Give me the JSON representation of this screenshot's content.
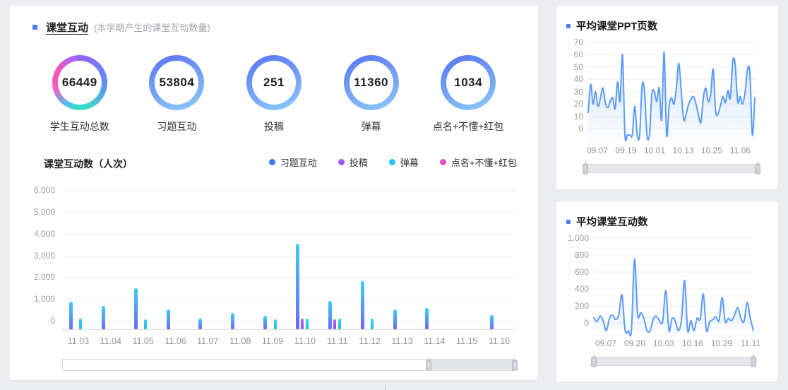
{
  "page": {
    "background": "#ebedf0",
    "accent": "#4e7df2"
  },
  "left_panel": {
    "title": "课堂互动",
    "subtitle": "(本学期产生的课堂互动数量)",
    "rings": [
      {
        "value": "66449",
        "label": "学生互动总数",
        "style": "multicolor"
      },
      {
        "value": "53804",
        "label": "习题互动",
        "style": "blue"
      },
      {
        "value": "251",
        "label": "投稿",
        "style": "blue"
      },
      {
        "value": "11360",
        "label": "弹幕",
        "style": "blue"
      },
      {
        "value": "1034",
        "label": "点名+不懂+红包",
        "style": "blue"
      }
    ]
  },
  "right_top_panel": {
    "title": "平均课堂PPT页数"
  },
  "right_bottom_panel": {
    "title": "平均课堂互动数"
  },
  "chart_data": [
    {
      "id": "classroom-interactions-bar",
      "type": "bar",
      "title": "课堂互动数（人次）",
      "categories": [
        "11.03",
        "11.04",
        "11.05",
        "11.06",
        "11.07",
        "11.08",
        "11.09",
        "11.10",
        "11.11",
        "11.12",
        "11.13",
        "11.14",
        "11.15",
        "11.16"
      ],
      "series": [
        {
          "name": "习题互动",
          "color": "#3d7bf8",
          "gradient": [
            "#3ecdf6",
            "#6a6cf2"
          ],
          "values": [
            850,
            650,
            1450,
            500,
            70,
            320,
            180,
            3500,
            870,
            1780,
            480,
            560,
            0,
            230
          ]
        },
        {
          "name": "投稿",
          "color": "#9b5cf6",
          "gradient": [
            "#a96cf8",
            "#8b52ee"
          ],
          "values": [
            0,
            0,
            0,
            0,
            0,
            0,
            0,
            60,
            30,
            0,
            0,
            0,
            0,
            0
          ]
        },
        {
          "name": "弹幕",
          "color": "#28c6f0",
          "gradient": [
            "#3fd4f6",
            "#22b8ec"
          ],
          "values": [
            60,
            0,
            40,
            0,
            0,
            0,
            30,
            70,
            50,
            60,
            0,
            0,
            0,
            0
          ]
        },
        {
          "name": "点名+不懂+红包",
          "color": "#e84fc8",
          "gradient": [
            "#f déb",
            "#e84fc8"
          ],
          "values": [
            30,
            40,
            40,
            0,
            0,
            20,
            30,
            40,
            40,
            40,
            30,
            20,
            0,
            30
          ]
        }
      ],
      "ylim": [
        0,
        6000
      ],
      "y_tick_labels": [
        "0",
        "1,000",
        "2,000",
        "3,000",
        "4,000",
        "5,000",
        "6,000"
      ],
      "grid": true,
      "legend_position": "top-right",
      "zoom_slider": {
        "start": 81,
        "end": 100
      }
    },
    {
      "id": "avg-ppt-pages-line",
      "type": "line",
      "title": "平均课堂PPT页数",
      "x_labels": [
        "09.07",
        "09.19",
        "10.01",
        "10.13",
        "10.25",
        "11.06"
      ],
      "ylim": [
        0,
        70
      ],
      "y_tick_labels": [
        "0",
        "10",
        "20",
        "30",
        "40",
        "50",
        "60",
        "70"
      ],
      "color": "#5b9bf8",
      "area": true,
      "grid": true,
      "values": [
        13,
        36,
        20,
        30,
        18,
        25,
        33,
        21,
        17,
        22,
        25,
        16,
        38,
        22,
        60,
        0,
        0,
        0,
        0,
        18,
        0,
        0,
        35,
        30,
        0,
        0,
        28,
        30,
        22,
        33,
        7,
        62,
        0,
        18,
        25,
        20,
        33,
        53,
        30,
        7,
        12,
        20,
        24,
        26,
        20,
        11,
        5,
        25,
        33,
        22,
        28,
        48,
        14,
        12,
        19,
        26,
        21,
        31,
        25,
        55,
        52,
        22,
        26,
        20,
        29,
        48,
        45,
        0,
        25
      ],
      "zoom_slider": {
        "start": 0,
        "end": 100
      }
    },
    {
      "id": "avg-interactions-line",
      "type": "line",
      "title": "平均课堂互动数",
      "x_labels": [
        "09.07",
        "09.20",
        "10.03",
        "10.16",
        "10.29",
        "11.11"
      ],
      "ylim": [
        0,
        1000
      ],
      "y_tick_labels": [
        "0",
        "200",
        "400",
        "600",
        "800",
        "1,000"
      ],
      "color": "#5b9bf8",
      "area": true,
      "grid": true,
      "values": [
        60,
        15,
        80,
        25,
        0,
        55,
        90,
        40,
        100,
        330,
        0,
        0,
        0,
        750,
        100,
        120,
        55,
        0,
        0,
        45,
        80,
        25,
        15,
        380,
        0,
        55,
        25,
        0,
        35,
        500,
        0,
        25,
        0,
        55,
        45,
        340,
        0,
        15,
        35,
        75,
        25,
        300,
        15,
        55,
        25,
        95,
        180,
        55,
        15,
        240,
        55,
        0
      ],
      "zoom_slider": {
        "start": 0,
        "end": 100
      }
    }
  ]
}
